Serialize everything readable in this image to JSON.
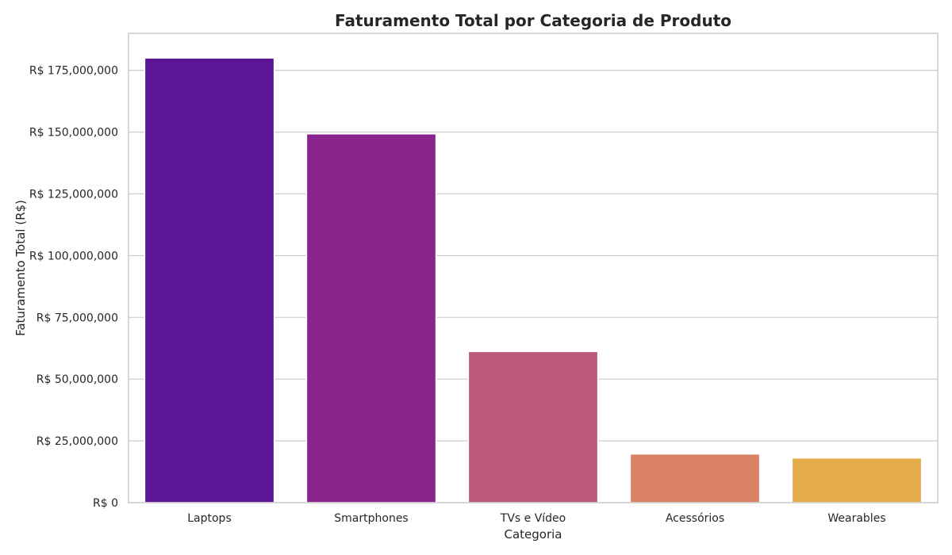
{
  "chart_data": {
    "type": "bar",
    "title": "Faturamento Total por Categoria de Produto",
    "xlabel": "Categoria",
    "ylabel": "Faturamento Total (R$)",
    "categories": [
      "Laptops",
      "Smartphones",
      "TVs e Vídeo",
      "Acessórios",
      "Wearables"
    ],
    "values": [
      180000000,
      149300000,
      61200000,
      19700000,
      18100000
    ],
    "colors": [
      "#5a1694",
      "#88268d",
      "#bc5a7a",
      "#d98266",
      "#e4ac4a"
    ],
    "ylim": [
      0,
      190000000
    ],
    "yticks": [
      0,
      25000000,
      50000000,
      75000000,
      100000000,
      125000000,
      150000000,
      175000000
    ],
    "ytick_labels": [
      "R$ 0",
      "R$ 25,000,000",
      "R$ 50,000,000",
      "R$ 75,000,000",
      "R$ 100,000,000",
      "R$ 125,000,000",
      "R$ 150,000,000",
      "R$ 175,000,000"
    ],
    "grid": true,
    "legend": false
  }
}
